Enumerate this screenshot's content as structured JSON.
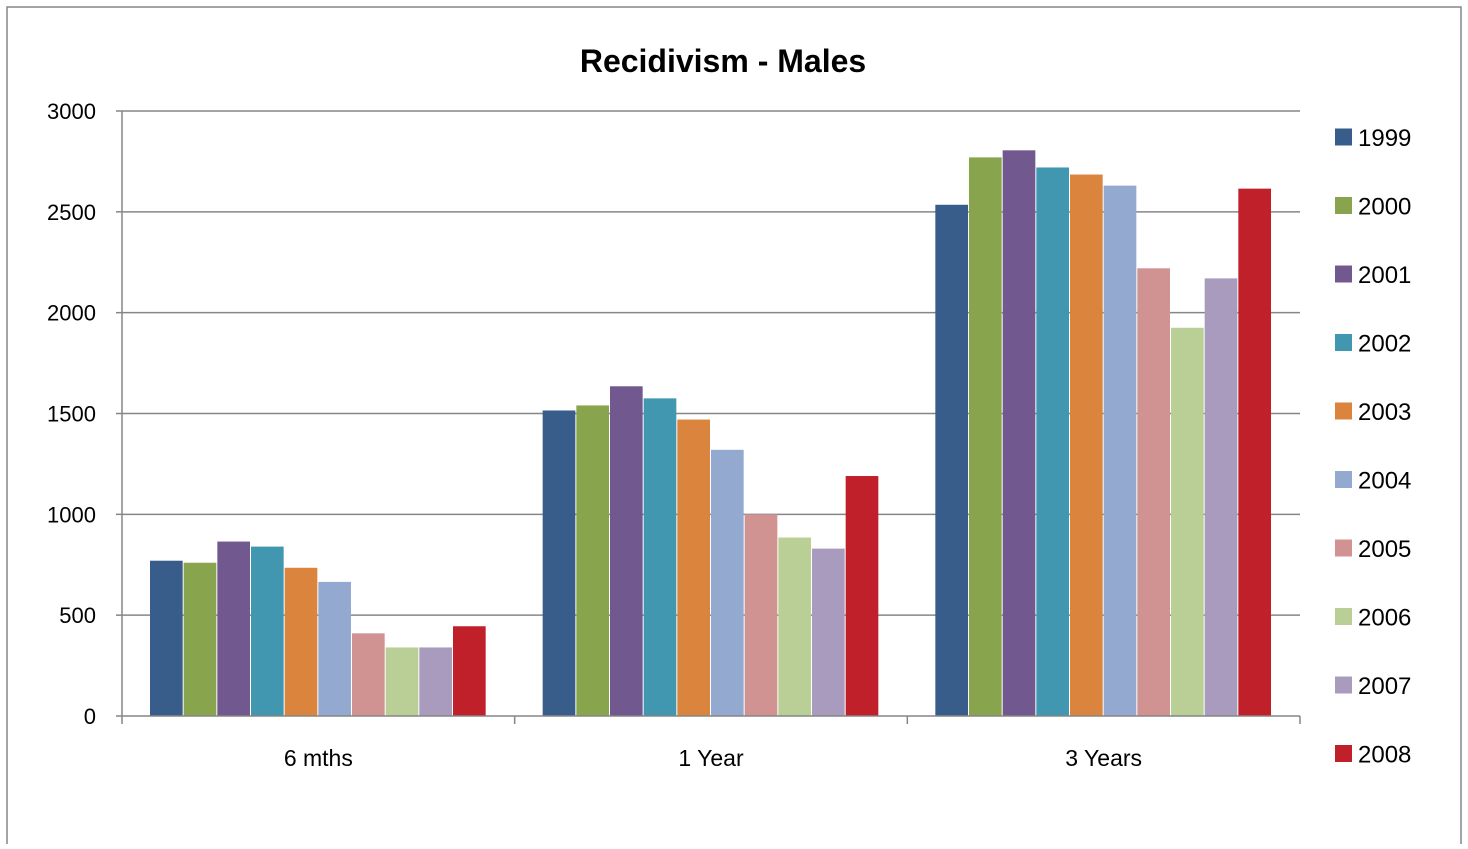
{
  "chart_data": {
    "type": "bar",
    "title": "Recidivism - Males",
    "xlabel": "",
    "ylabel": "",
    "ylim": [
      0,
      3000
    ],
    "yticks": [
      "0",
      "500",
      "1000",
      "1500",
      "2000",
      "2500",
      "3000"
    ],
    "grid": true,
    "legend_position": "right",
    "categories": [
      "6 mths",
      "1 Year",
      "3 Years"
    ],
    "series": [
      {
        "name": "1999",
        "color": "#385D8A",
        "values": [
          770,
          1515,
          2535
        ]
      },
      {
        "name": "2000",
        "color": "#88A44C",
        "values": [
          760,
          1540,
          2770
        ]
      },
      {
        "name": "2001",
        "color": "#71588F",
        "values": [
          865,
          1635,
          2805
        ]
      },
      {
        "name": "2002",
        "color": "#4197AF",
        "values": [
          840,
          1575,
          2720
        ]
      },
      {
        "name": "2003",
        "color": "#DB843D",
        "values": [
          735,
          1470,
          2685
        ]
      },
      {
        "name": "2004",
        "color": "#93A9D0",
        "values": [
          665,
          1320,
          2630
        ]
      },
      {
        "name": "2005",
        "color": "#D09392",
        "values": [
          410,
          1000,
          2220
        ]
      },
      {
        "name": "2006",
        "color": "#BACF96",
        "values": [
          340,
          885,
          1925
        ]
      },
      {
        "name": "2007",
        "color": "#A99BBD",
        "values": [
          340,
          830,
          2170
        ]
      },
      {
        "name": "2008",
        "color": "#C0202A",
        "values": [
          445,
          1190,
          2615
        ]
      }
    ]
  }
}
